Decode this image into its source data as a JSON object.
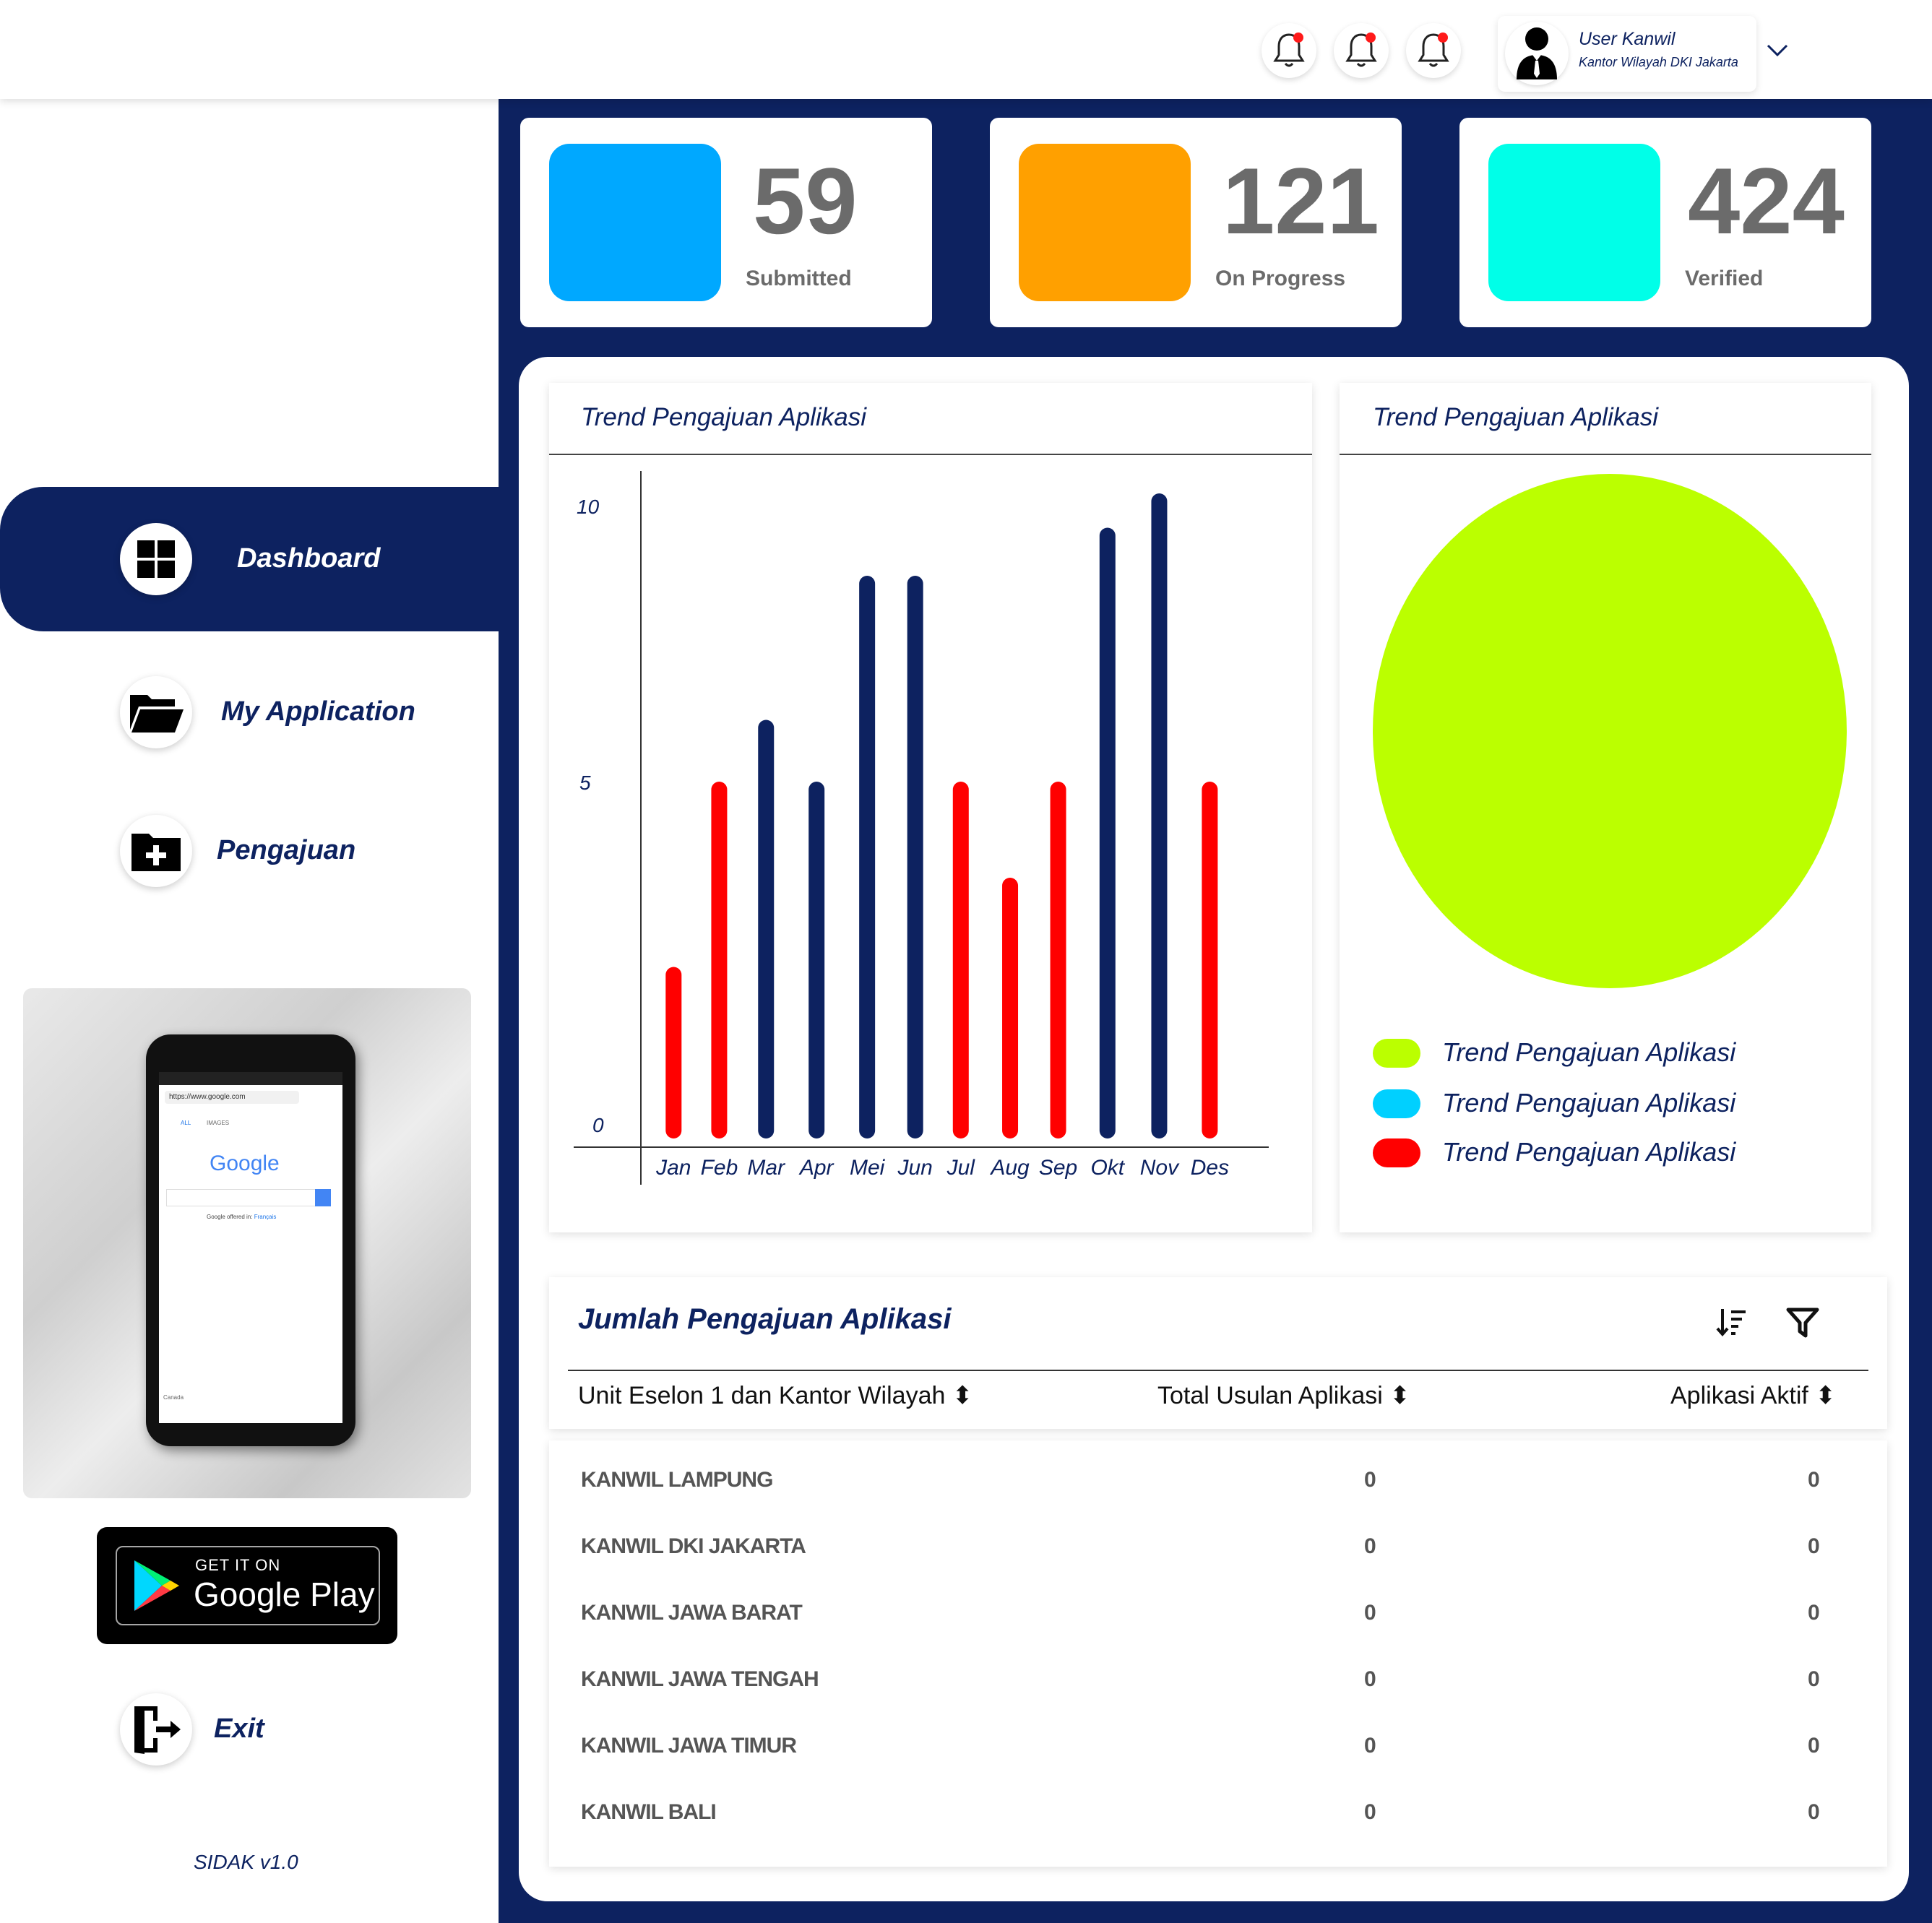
{
  "topbar": {
    "user": {
      "name": "User Kanwil",
      "office": "Kantor Wilayah DKI Jakarta"
    },
    "icons": [
      "bell-icon",
      "bell-icon",
      "bell-icon",
      "user-avatar-icon",
      "chevron-down-icon"
    ]
  },
  "sidebar": {
    "items": [
      {
        "label": "Dashboard",
        "icon": "dashboard-grid-icon",
        "active": true
      },
      {
        "label": "My Application",
        "icon": "folder-open-icon",
        "active": false
      },
      {
        "label": "Pengajuan",
        "icon": "folder-add-icon",
        "active": false
      },
      {
        "label": "Exit",
        "icon": "exit-door-icon",
        "active": false
      }
    ],
    "phone": {
      "url": "https://www.google.com",
      "tab_all": "ALL",
      "tab_images": "IMAGES",
      "logo": "Google",
      "offered": "Google offered in:",
      "offered_lang": "Français",
      "footer": "Canada"
    },
    "store_badge": {
      "line1": "GET IT ON",
      "line2": "Google Play"
    },
    "version": "SIDAK v1.0"
  },
  "stats": [
    {
      "value": "59",
      "label": "Submitted",
      "color": "#00a8ff"
    },
    {
      "value": "121",
      "label": "On Progress",
      "color": "#ffa000"
    },
    {
      "value": "424",
      "label": "Verified",
      "color": "#00ffe8"
    }
  ],
  "charts": {
    "bar_title": "Trend Pengajuan Aplikasi",
    "pie_title": "Trend Pengajuan Aplikasi",
    "yticks": [
      "10",
      "5",
      "0"
    ]
  },
  "chart_data": [
    {
      "type": "bar",
      "title": "Trend Pengajuan Aplikasi",
      "categories": [
        "Jan",
        "Feb",
        "Mar",
        "Apr",
        "Mei",
        "Jun",
        "Jul",
        "Aug",
        "Sep",
        "Okt",
        "Nov",
        "Des"
      ],
      "values": [
        2.5,
        5.2,
        6.1,
        5.2,
        8.2,
        8.2,
        5.2,
        3.8,
        5.2,
        8.9,
        9.4,
        5.2
      ],
      "colors": [
        "#ff0000",
        "#ff0000",
        "#0d2260",
        "#0d2260",
        "#0d2260",
        "#0d2260",
        "#ff0000",
        "#ff0000",
        "#ff0000",
        "#0d2260",
        "#0d2260",
        "#ff0000"
      ],
      "ylim": [
        0,
        10
      ],
      "grid": false
    },
    {
      "type": "pie",
      "title": "Trend Pengajuan Aplikasi",
      "labels": [
        "Trend Pengajuan Aplikasi",
        "Trend Pengajuan Aplikasi",
        "Trend Pengajuan Aplikasi"
      ],
      "values": [
        100,
        0,
        0
      ],
      "colors": [
        "#bbff00",
        "#00d0ff",
        "#ff0000"
      ],
      "legend": "bottom"
    }
  ],
  "table": {
    "title": "Jumlah Pengajuan Aplikasi",
    "columns": [
      "Unit Eselon 1 dan Kantor Wilayah",
      "Total Usulan Aplikasi",
      "Aplikasi Aktif"
    ],
    "rows": [
      [
        "KANWIL LAMPUNG",
        "0",
        "0"
      ],
      [
        "KANWIL DKI JAKARTA",
        "0",
        "0"
      ],
      [
        "KANWIL JAWA BARAT",
        "0",
        "0"
      ],
      [
        "KANWIL JAWA TENGAH",
        "0",
        "0"
      ],
      [
        "KANWIL JAWA TIMUR",
        "0",
        "0"
      ],
      [
        "KANWIL BALI",
        "0",
        "0"
      ]
    ]
  }
}
